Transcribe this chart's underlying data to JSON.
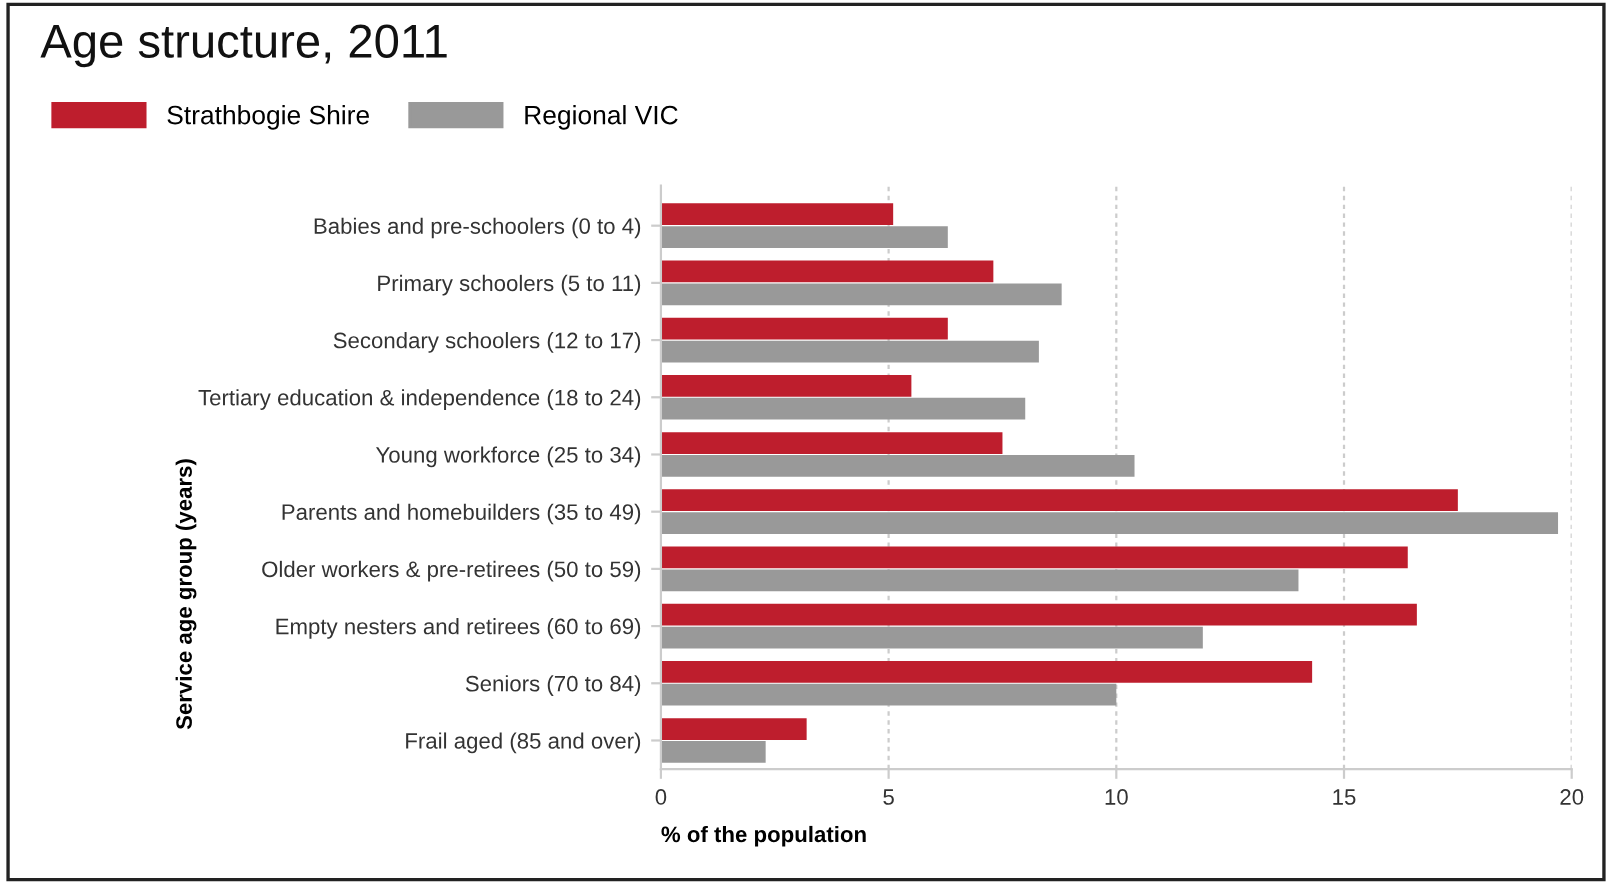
{
  "chart_data": {
    "type": "bar",
    "orientation": "horizontal",
    "title": "Age structure, 2011",
    "xlabel": "% of the population",
    "ylabel": "Service age group (years)",
    "categories": [
      "Babies and pre-schoolers (0 to 4)",
      "Primary schoolers (5 to 11)",
      "Secondary schoolers (12 to 17)",
      "Tertiary education & independence (18 to 24)",
      "Young workforce (25 to 34)",
      "Parents and homebuilders (35 to 49)",
      "Older workers & pre-retirees (50 to 59)",
      "Empty nesters and retirees (60 to 69)",
      "Seniors (70 to 84)",
      "Frail aged (85 and over)"
    ],
    "series": [
      {
        "name": "Strathbogie Shire",
        "color": "#be1e2d",
        "values": [
          5.1,
          7.3,
          6.3,
          5.5,
          7.5,
          17.5,
          16.4,
          16.6,
          14.3,
          3.2
        ]
      },
      {
        "name": "Regional VIC",
        "color": "#999999",
        "values": [
          6.3,
          8.8,
          8.3,
          8.0,
          10.4,
          19.7,
          14.0,
          11.9,
          10.0,
          2.3
        ]
      }
    ],
    "xlim": [
      0,
      20
    ],
    "xticks": [
      0,
      5,
      10,
      15,
      20
    ],
    "grid": "x",
    "legend": "top left"
  }
}
